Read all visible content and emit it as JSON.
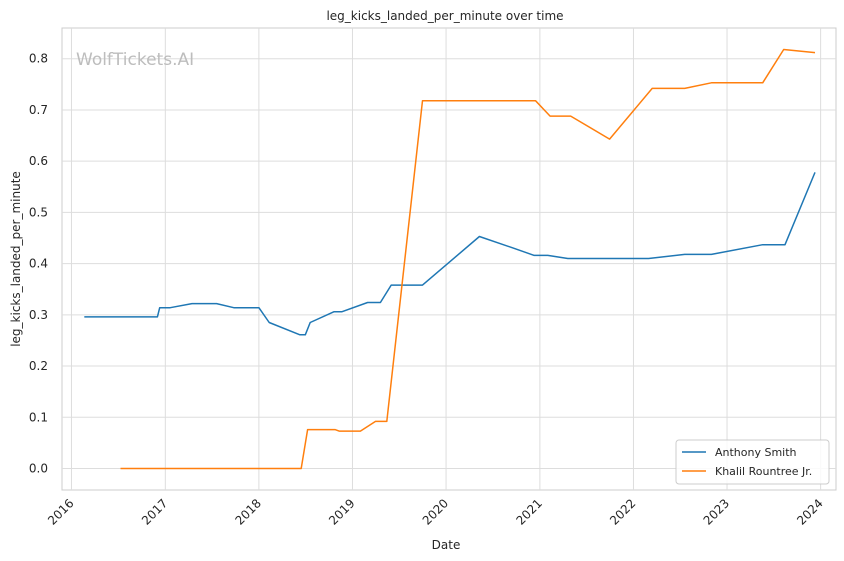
{
  "chart_data": {
    "type": "line",
    "title": "leg_kicks_landed_per_minute over time",
    "xlabel": "Date",
    "ylabel": "leg_kicks_landed_per_minute",
    "watermark": "WolfTickets.AI",
    "x_ticks": [
      "2016",
      "2017",
      "2018",
      "2019",
      "2020",
      "2021",
      "2022",
      "2023",
      "2024"
    ],
    "y_ticks": [
      "0.0",
      "0.1",
      "0.2",
      "0.3",
      "0.4",
      "0.5",
      "0.6",
      "0.7",
      "0.8"
    ],
    "xlim": [
      "2015-11-25",
      "2024-03-01"
    ],
    "ylim": [
      -0.042,
      0.86
    ],
    "grid": true,
    "legend_position": "bottom-right",
    "colors": {
      "Anthony Smith": "#1f77b4",
      "Khalil Rountree Jr.": "#ff7f0e"
    },
    "series": [
      {
        "name": "Anthony Smith",
        "color": "#1f77b4",
        "points": [
          [
            "2016-02-20",
            0.296
          ],
          [
            "2016-12-01",
            0.296
          ],
          [
            "2016-12-10",
            0.314
          ],
          [
            "2017-01-20",
            0.314
          ],
          [
            "2017-04-15",
            0.322
          ],
          [
            "2017-07-20",
            0.322
          ],
          [
            "2017-09-25",
            0.314
          ],
          [
            "2018-01-01",
            0.314
          ],
          [
            "2018-02-10",
            0.285
          ],
          [
            "2018-06-10",
            0.261
          ],
          [
            "2018-07-01",
            0.261
          ],
          [
            "2018-07-20",
            0.285
          ],
          [
            "2018-10-20",
            0.306
          ],
          [
            "2018-11-20",
            0.306
          ],
          [
            "2019-03-01",
            0.324
          ],
          [
            "2019-04-20",
            0.324
          ],
          [
            "2019-06-01",
            0.358
          ],
          [
            "2019-10-01",
            0.358
          ],
          [
            "2020-05-10",
            0.453
          ],
          [
            "2020-09-15",
            0.431
          ],
          [
            "2020-12-10",
            0.416
          ],
          [
            "2021-02-01",
            0.416
          ],
          [
            "2021-04-20",
            0.41
          ],
          [
            "2021-09-01",
            0.41
          ],
          [
            "2022-03-01",
            0.41
          ],
          [
            "2022-07-20",
            0.418
          ],
          [
            "2022-11-01",
            0.418
          ],
          [
            "2023-05-20",
            0.437
          ],
          [
            "2023-08-15",
            0.437
          ],
          [
            "2023-12-10",
            0.578
          ]
        ]
      },
      {
        "name": "Khalil Rountree Jr.",
        "color": "#ff7f0e",
        "points": [
          [
            "2016-07-10",
            0.0
          ],
          [
            "2018-06-15",
            0.0
          ],
          [
            "2018-07-10",
            0.076
          ],
          [
            "2018-10-25",
            0.076
          ],
          [
            "2018-11-10",
            0.073
          ],
          [
            "2019-02-01",
            0.073
          ],
          [
            "2019-04-01",
            0.092
          ],
          [
            "2019-05-15",
            0.092
          ],
          [
            "2019-10-01",
            0.718
          ],
          [
            "2020-12-15",
            0.718
          ],
          [
            "2021-02-10",
            0.688
          ],
          [
            "2021-05-01",
            0.688
          ],
          [
            "2021-09-30",
            0.643
          ],
          [
            "2022-03-15",
            0.742
          ],
          [
            "2022-07-20",
            0.742
          ],
          [
            "2022-11-01",
            0.753
          ],
          [
            "2023-05-20",
            0.753
          ],
          [
            "2023-08-10",
            0.818
          ],
          [
            "2023-12-10",
            0.812
          ]
        ]
      }
    ]
  }
}
